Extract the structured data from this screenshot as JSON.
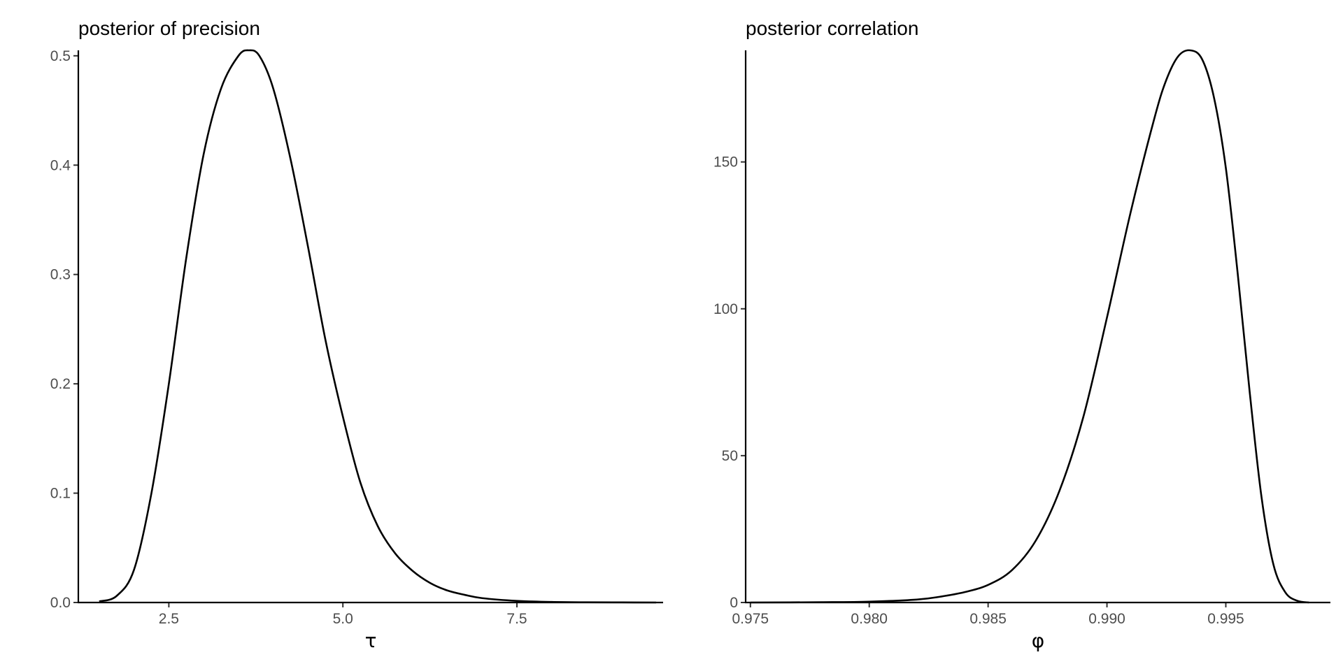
{
  "chart_data": [
    {
      "type": "line",
      "title": "posterior of precision",
      "xlabel": "τ",
      "ylabel": "",
      "xlim": [
        1.2,
        9.6
      ],
      "ylim": [
        0,
        0.505
      ],
      "xticks": [
        2.5,
        5.0,
        7.5
      ],
      "xtick_labels": [
        "2.5",
        "5.0",
        "7.5"
      ],
      "yticks": [
        0.0,
        0.1,
        0.2,
        0.3,
        0.4,
        0.5
      ],
      "ytick_labels": [
        "0.0",
        "0.1",
        "0.2",
        "0.3",
        "0.4",
        "0.5"
      ],
      "grid": false,
      "legend": "none",
      "color": "#000000",
      "series": [
        {
          "x": [
            1.5,
            1.75,
            2.0,
            2.25,
            2.5,
            2.75,
            3.0,
            3.25,
            3.5,
            3.65,
            3.8,
            4.0,
            4.25,
            4.5,
            4.75,
            5.0,
            5.25,
            5.5,
            5.75,
            6.0,
            6.25,
            6.5,
            6.75,
            7.0,
            7.5,
            8.0,
            8.5,
            9.0,
            9.5
          ],
          "y": [
            0.001,
            0.006,
            0.03,
            0.1,
            0.2,
            0.315,
            0.41,
            0.47,
            0.5,
            0.505,
            0.5,
            0.47,
            0.405,
            0.325,
            0.24,
            0.17,
            0.11,
            0.07,
            0.045,
            0.029,
            0.018,
            0.011,
            0.007,
            0.004,
            0.0015,
            0.0005,
            0.0002,
            0.0001,
            0.0
          ]
        }
      ]
    },
    {
      "type": "line",
      "title": "posterior correlation",
      "xlabel": "φ",
      "ylabel": "",
      "xlim": [
        0.9748,
        0.9994
      ],
      "ylim": [
        0,
        188
      ],
      "xticks": [
        0.975,
        0.98,
        0.985,
        0.99,
        0.995
      ],
      "xtick_labels": [
        "0.975",
        "0.980",
        "0.985",
        "0.990",
        "0.995"
      ],
      "yticks": [
        0,
        50,
        100,
        150
      ],
      "ytick_labels": [
        "0",
        "50",
        "100",
        "150"
      ],
      "grid": false,
      "legend": "none",
      "color": "#000000",
      "series": [
        {
          "x": [
            0.975,
            0.978,
            0.98,
            0.982,
            0.983,
            0.984,
            0.985,
            0.986,
            0.987,
            0.988,
            0.989,
            0.99,
            0.991,
            0.992,
            0.9925,
            0.993,
            0.9935,
            0.994,
            0.9945,
            0.995,
            0.9955,
            0.996,
            0.9965,
            0.997,
            0.9975,
            0.998,
            0.9985
          ],
          "y": [
            0.0,
            0.1,
            0.3,
            1.0,
            2.0,
            3.5,
            6.0,
            11.0,
            21.0,
            38.0,
            63.0,
            97.0,
            133.0,
            165.0,
            178.0,
            186.0,
            188.0,
            185.0,
            172.0,
            148.0,
            112.0,
            72.0,
            36.0,
            13.0,
            3.5,
            0.6,
            0.0
          ]
        }
      ]
    }
  ]
}
